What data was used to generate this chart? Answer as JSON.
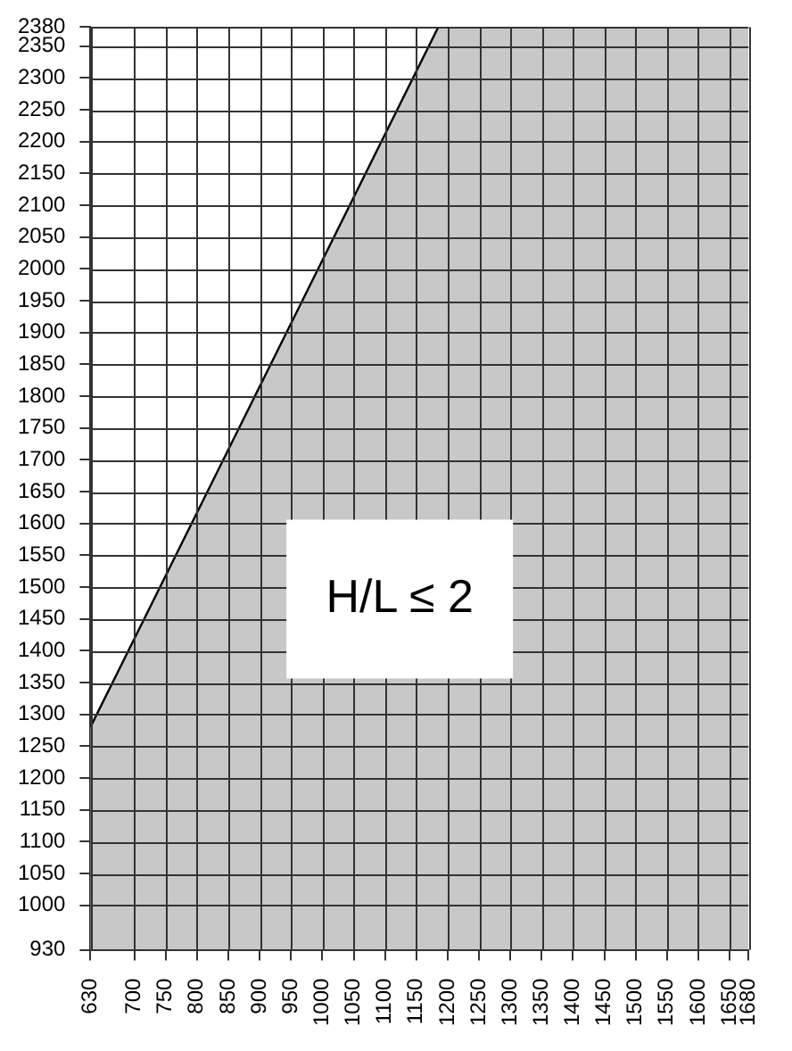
{
  "chart_data": {
    "type": "area",
    "x": [
      630,
      1185,
      1680
    ],
    "series": [
      {
        "color": "#c8c8c8",
        "values": [
          1280,
          2380,
          2380
        ]
      }
    ],
    "xlim": [
      630,
      1680
    ],
    "ylim": [
      930,
      2380
    ],
    "xticks": [
      630,
      700,
      750,
      800,
      850,
      900,
      950,
      1000,
      1050,
      1100,
      1150,
      1200,
      1250,
      1300,
      1350,
      1400,
      1450,
      1500,
      1550,
      1600,
      1650,
      1680
    ],
    "yticks": [
      930,
      1000,
      1050,
      1100,
      1150,
      1200,
      1250,
      1300,
      1350,
      1400,
      1450,
      1500,
      1550,
      1600,
      1650,
      1700,
      1750,
      1800,
      1850,
      1900,
      1950,
      2000,
      2050,
      2100,
      2150,
      2200,
      2250,
      2300,
      2350,
      2380
    ],
    "annotations": [
      "H/L ≤ 2"
    ],
    "grid": true,
    "legend": false
  }
}
